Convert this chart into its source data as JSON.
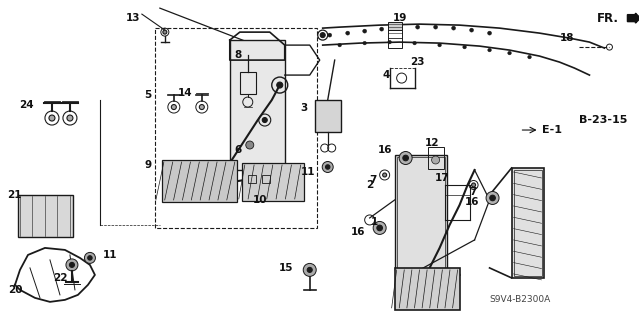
{
  "bg_color": "#ffffff",
  "diagram_code": "S9V4-B2300A",
  "ref_label": "FR.",
  "ref_code": "B-23-15",
  "e_label": "E-1",
  "line_color": "#1a1a1a",
  "text_color": "#111111",
  "font_size": 7.5,
  "figsize": [
    6.4,
    3.19
  ],
  "dpi": 100
}
